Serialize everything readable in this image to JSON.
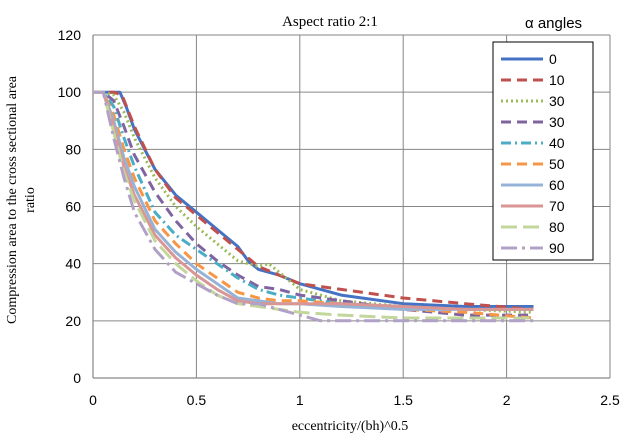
{
  "chart_data": {
    "type": "line",
    "title": "Aspect ratio 2:1",
    "xlabel": "eccentricity/(bh)^0.5",
    "ylabel": "Compression area to the cross sectional area ratio",
    "legend_title": "α angles",
    "legend_position": "top-right",
    "xlim": [
      0,
      2.5
    ],
    "ylim": [
      0,
      120
    ],
    "x_ticks": [
      0,
      0.5,
      1,
      1.5,
      2,
      2.5
    ],
    "x_tick_labels": [
      "0",
      "0.5",
      "1",
      "1.5",
      "2",
      "2.5"
    ],
    "y_ticks": [
      0,
      20,
      40,
      60,
      80,
      100,
      120
    ],
    "y_tick_labels": [
      "0",
      "20",
      "40",
      "60",
      "80",
      "100",
      "120"
    ],
    "grid": true,
    "series": [
      {
        "name": "0",
        "color": "#4472C4",
        "dash": "solid",
        "points": [
          [
            0,
            100
          ],
          [
            0.05,
            100
          ],
          [
            0.1,
            100
          ],
          [
            0.13,
            100
          ],
          [
            0.16,
            95
          ],
          [
            0.2,
            87
          ],
          [
            0.3,
            73
          ],
          [
            0.4,
            64
          ],
          [
            0.5,
            58
          ],
          [
            0.6,
            52
          ],
          [
            0.7,
            46
          ],
          [
            0.75,
            41
          ],
          [
            0.8,
            38
          ],
          [
            0.9,
            36
          ],
          [
            1.0,
            33
          ],
          [
            1.2,
            29
          ],
          [
            1.5,
            26
          ],
          [
            1.8,
            25
          ],
          [
            2.0,
            25
          ],
          [
            2.13,
            25
          ]
        ]
      },
      {
        "name": "10",
        "color": "#C0504D",
        "dash": "dash",
        "points": [
          [
            0,
            100
          ],
          [
            0.05,
            100
          ],
          [
            0.1,
            100
          ],
          [
            0.14,
            99
          ],
          [
            0.2,
            88
          ],
          [
            0.3,
            73
          ],
          [
            0.4,
            63
          ],
          [
            0.5,
            57
          ],
          [
            0.6,
            51
          ],
          [
            0.7,
            45
          ],
          [
            0.8,
            39
          ],
          [
            0.9,
            36
          ],
          [
            1.0,
            33
          ],
          [
            1.2,
            31
          ],
          [
            1.5,
            28
          ],
          [
            1.8,
            26
          ],
          [
            2.13,
            24
          ]
        ]
      },
      {
        "name": "30",
        "color": "#9BBB59",
        "dash": "dot",
        "points": [
          [
            0,
            100
          ],
          [
            0.05,
            100
          ],
          [
            0.1,
            99
          ],
          [
            0.15,
            93
          ],
          [
            0.2,
            84
          ],
          [
            0.3,
            70
          ],
          [
            0.4,
            60
          ],
          [
            0.5,
            53
          ],
          [
            0.6,
            47
          ],
          [
            0.7,
            41
          ],
          [
            0.8,
            39
          ],
          [
            0.85,
            40
          ],
          [
            0.9,
            37
          ],
          [
            1.0,
            31
          ],
          [
            1.2,
            27
          ],
          [
            1.5,
            25
          ],
          [
            1.8,
            24
          ],
          [
            2.13,
            23
          ]
        ]
      },
      {
        "name": "30",
        "color": "#8064A2",
        "dash": "dash",
        "points": [
          [
            0,
            100
          ],
          [
            0.05,
            100
          ],
          [
            0.1,
            97
          ],
          [
            0.15,
            88
          ],
          [
            0.2,
            78
          ],
          [
            0.3,
            65
          ],
          [
            0.4,
            55
          ],
          [
            0.5,
            47
          ],
          [
            0.6,
            41
          ],
          [
            0.7,
            36
          ],
          [
            0.8,
            32
          ],
          [
            0.9,
            31
          ],
          [
            1.0,
            29
          ],
          [
            1.2,
            27
          ],
          [
            1.5,
            24
          ],
          [
            1.8,
            22
          ],
          [
            2.13,
            22
          ]
        ]
      },
      {
        "name": "40",
        "color": "#4BACC6",
        "dash": "dashdot",
        "points": [
          [
            0,
            100
          ],
          [
            0.05,
            100
          ],
          [
            0.1,
            95
          ],
          [
            0.15,
            84
          ],
          [
            0.2,
            74
          ],
          [
            0.3,
            58
          ],
          [
            0.4,
            50
          ],
          [
            0.5,
            45
          ],
          [
            0.6,
            40
          ],
          [
            0.7,
            35
          ],
          [
            0.8,
            31
          ],
          [
            0.9,
            29
          ],
          [
            1.0,
            28
          ],
          [
            1.2,
            26
          ],
          [
            1.5,
            25
          ],
          [
            1.8,
            24
          ],
          [
            2.13,
            24
          ]
        ]
      },
      {
        "name": "50",
        "color": "#F79646",
        "dash": "dash",
        "points": [
          [
            0,
            100
          ],
          [
            0.05,
            100
          ],
          [
            0.1,
            92
          ],
          [
            0.15,
            80
          ],
          [
            0.2,
            70
          ],
          [
            0.3,
            55
          ],
          [
            0.4,
            47
          ],
          [
            0.5,
            40
          ],
          [
            0.6,
            35
          ],
          [
            0.7,
            30
          ],
          [
            0.8,
            28
          ],
          [
            0.9,
            27
          ],
          [
            1.0,
            27
          ],
          [
            1.2,
            26
          ],
          [
            1.5,
            24
          ],
          [
            1.8,
            23
          ],
          [
            2.13,
            21
          ]
        ]
      },
      {
        "name": "60",
        "color": "#95B3D7",
        "dash": "solid",
        "points": [
          [
            0,
            100
          ],
          [
            0.05,
            100
          ],
          [
            0.1,
            90
          ],
          [
            0.15,
            77
          ],
          [
            0.2,
            67
          ],
          [
            0.3,
            52
          ],
          [
            0.4,
            44
          ],
          [
            0.5,
            38
          ],
          [
            0.6,
            33
          ],
          [
            0.7,
            28
          ],
          [
            0.8,
            27
          ],
          [
            0.9,
            26
          ],
          [
            1.0,
            26
          ],
          [
            1.2,
            25
          ],
          [
            1.5,
            24
          ],
          [
            1.8,
            24
          ],
          [
            2.13,
            24
          ]
        ]
      },
      {
        "name": "70",
        "color": "#D99694",
        "dash": "solid",
        "points": [
          [
            0,
            100
          ],
          [
            0.05,
            100
          ],
          [
            0.1,
            88
          ],
          [
            0.15,
            74
          ],
          [
            0.2,
            64
          ],
          [
            0.3,
            50
          ],
          [
            0.4,
            42
          ],
          [
            0.5,
            36
          ],
          [
            0.6,
            31
          ],
          [
            0.7,
            27
          ],
          [
            0.8,
            26
          ],
          [
            0.9,
            26
          ],
          [
            1.0,
            26
          ],
          [
            1.2,
            26
          ],
          [
            1.5,
            25
          ],
          [
            1.8,
            24
          ],
          [
            2.13,
            24
          ]
        ]
      },
      {
        "name": "80",
        "color": "#C3D69B",
        "dash": "longdash",
        "points": [
          [
            0,
            100
          ],
          [
            0.05,
            100
          ],
          [
            0.1,
            86
          ],
          [
            0.15,
            72
          ],
          [
            0.2,
            62
          ],
          [
            0.3,
            48
          ],
          [
            0.4,
            40
          ],
          [
            0.5,
            34
          ],
          [
            0.6,
            29
          ],
          [
            0.7,
            26
          ],
          [
            0.8,
            25
          ],
          [
            0.9,
            24
          ],
          [
            1.0,
            23
          ],
          [
            1.2,
            22
          ],
          [
            1.5,
            21
          ],
          [
            1.8,
            21
          ],
          [
            2.13,
            21
          ]
        ]
      },
      {
        "name": "90",
        "color": "#B2A1C7",
        "dash": "longdashdot",
        "points": [
          [
            0,
            100
          ],
          [
            0.05,
            100
          ],
          [
            0.1,
            84
          ],
          [
            0.15,
            70
          ],
          [
            0.2,
            58
          ],
          [
            0.3,
            45
          ],
          [
            0.4,
            37
          ],
          [
            0.5,
            33
          ],
          [
            0.6,
            29
          ],
          [
            0.7,
            26
          ],
          [
            0.8,
            26
          ],
          [
            0.9,
            24
          ],
          [
            1.0,
            22
          ],
          [
            1.1,
            20
          ],
          [
            1.3,
            20
          ],
          [
            1.5,
            20
          ],
          [
            1.8,
            20
          ],
          [
            2.13,
            20
          ]
        ]
      }
    ]
  }
}
